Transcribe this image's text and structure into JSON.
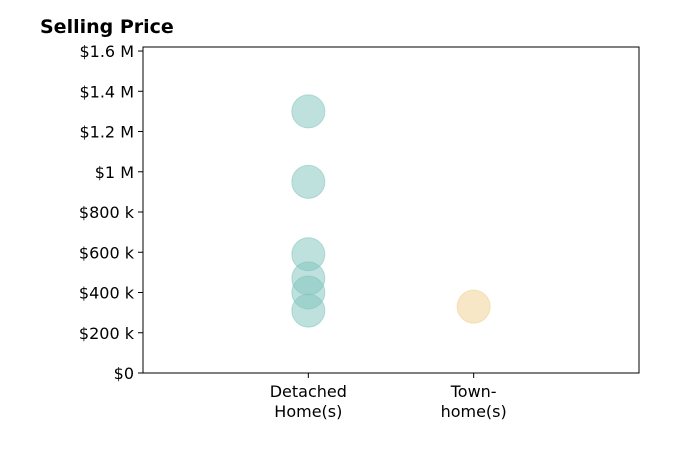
{
  "chart_data": {
    "type": "scatter",
    "title": "Selling Price",
    "xlabel": "",
    "ylabel": "",
    "categories": [
      [
        "Detached",
        "Home(s)"
      ],
      [
        "Town-",
        "home(s)"
      ]
    ],
    "y_ticks": [
      {
        "value": 0,
        "label": "$0"
      },
      {
        "value": 200000,
        "label": "$200 k"
      },
      {
        "value": 400000,
        "label": "$400 k"
      },
      {
        "value": 600000,
        "label": "$600 k"
      },
      {
        "value": 800000,
        "label": "$800 k"
      },
      {
        "value": 1000000,
        "label": "$1 M"
      },
      {
        "value": 1200000,
        "label": "$1.2 M"
      },
      {
        "value": 1400000,
        "label": "$1.4 M"
      },
      {
        "value": 1600000,
        "label": "$1.6 M"
      }
    ],
    "ylim": [
      0,
      1620000
    ],
    "xlim": [
      -1,
      2
    ],
    "grid": false,
    "series": [
      {
        "category_index": 0,
        "color": "#7fc4bc",
        "values": [
          1300000,
          950000,
          590000,
          470000,
          400000,
          310000
        ]
      },
      {
        "category_index": 1,
        "color": "#f0cf8e",
        "values": [
          330000
        ]
      }
    ]
  }
}
